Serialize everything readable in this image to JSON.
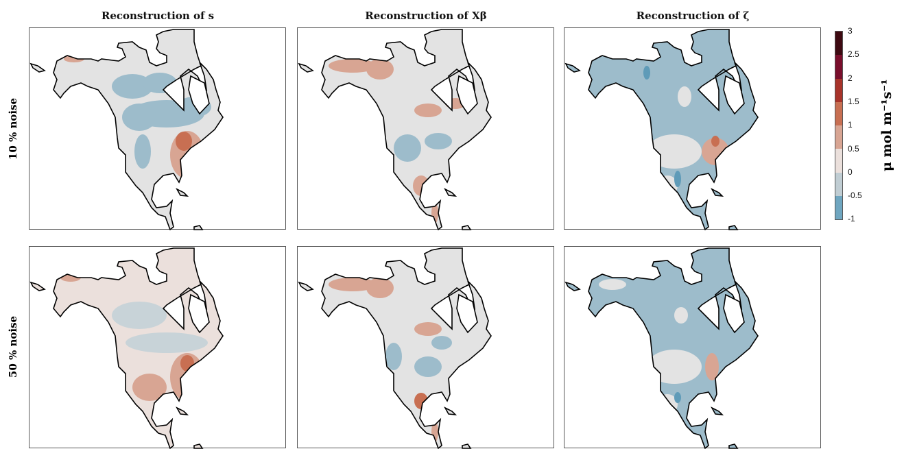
{
  "columns": [
    {
      "title": "Reconstruction of s"
    },
    {
      "title": "Reconstruction of Xβ"
    },
    {
      "title": "Reconstruction of ζ"
    }
  ],
  "rows": [
    {
      "label": "10 % noise"
    },
    {
      "label": "50 % noise"
    }
  ],
  "colorbar": {
    "label": "μ mol m⁻¹s⁻¹",
    "ticks": [
      "3",
      "2.5",
      "2",
      "1.5",
      "1",
      "0.5",
      "0",
      "-0.5",
      "-1"
    ],
    "colors": [
      "#3e0a12",
      "#7a0e2c",
      "#a8332a",
      "#c86f52",
      "#d8a593",
      "#ebe0dc",
      "#c0cdd3",
      "#6fa6c0"
    ]
  }
}
